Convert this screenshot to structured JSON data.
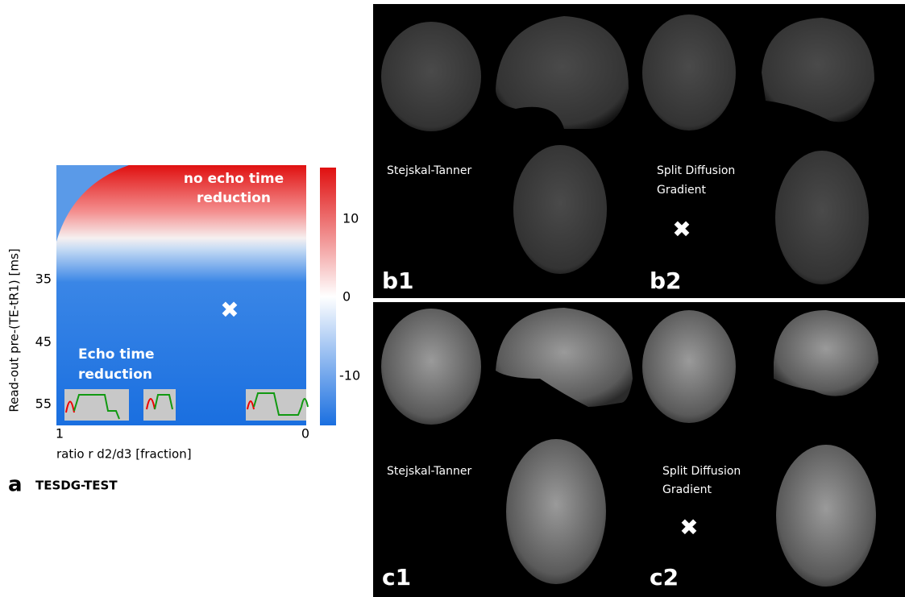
{
  "panel_a": {
    "label": "a",
    "subtitle": "TESDG-TEST",
    "y_axis_label": "Read-out pre-(TE-tR1) [ms]",
    "x_axis_label": "ratio r d2/d3 [fraction]",
    "y_ticks": [
      "35",
      "45",
      "55"
    ],
    "x_ticks": [
      "1",
      "0"
    ],
    "colorbar_ticks": [
      "10",
      "0",
      "-10"
    ],
    "top_annotation": [
      "no echo time",
      "reduction"
    ],
    "bottom_annotation": [
      "Echo time",
      "reduction"
    ]
  },
  "panel_b": {
    "labels": [
      "b1",
      "b2"
    ],
    "captions": [
      [
        "Stejskal-Tanner"
      ],
      [
        "Split Diffusion",
        "Gradient"
      ]
    ]
  },
  "panel_c": {
    "labels": [
      "c1",
      "c2"
    ],
    "captions": [
      [
        "Stejskal-Tanner"
      ],
      [
        "Split Diffusion",
        "Gradient"
      ]
    ]
  }
}
